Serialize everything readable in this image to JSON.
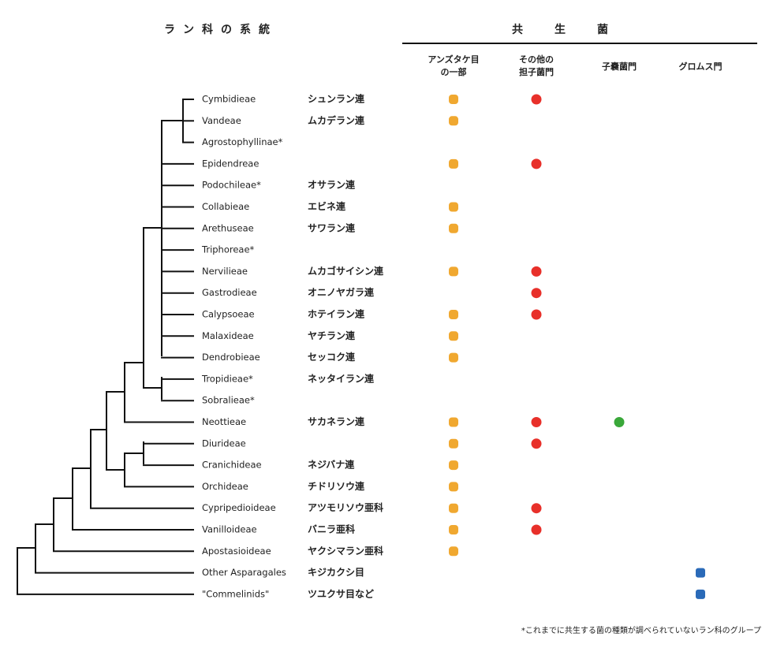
{
  "title": "ラン科の系統",
  "fungi_header": "共生菌",
  "columns": [
    {
      "lines": [
        "アンズタケ目",
        "の一部"
      ],
      "color": "#f0a830"
    },
    {
      "lines": [
        "その他の",
        "担子菌門"
      ],
      "color": "#e8302a"
    },
    {
      "lines": [
        "子嚢菌門"
      ],
      "color": "#3aa83a"
    },
    {
      "lines": [
        "グロムス門"
      ],
      "color": "#2a6ab8"
    }
  ],
  "rows": [
    {
      "name": "Cymbidieae",
      "ja": "シュンラン連",
      "fungi": [
        true,
        true,
        false,
        false
      ]
    },
    {
      "name": "Vandeae",
      "ja": "ムカデラン連",
      "fungi": [
        true,
        false,
        false,
        false
      ]
    },
    {
      "name": "Agrostophyllinae*",
      "fungi": [
        false,
        false,
        false,
        false
      ]
    },
    {
      "name": "Epidendreae",
      "fungi": [
        true,
        true,
        false,
        false
      ]
    },
    {
      "name": "Podochileae*",
      "ja": "オサラン連",
      "fungi": [
        false,
        false,
        false,
        false
      ]
    },
    {
      "name": "Collabieae",
      "ja": "エビネ連",
      "fungi": [
        true,
        false,
        false,
        false
      ]
    },
    {
      "name": "Arethuseae",
      "ja": "サワラン連",
      "fungi": [
        true,
        false,
        false,
        false
      ]
    },
    {
      "name": "Triphoreae*",
      "fungi": [
        false,
        false,
        false,
        false
      ]
    },
    {
      "name": "Nervilieae",
      "ja": "ムカゴサイシン連",
      "fungi": [
        true,
        true,
        false,
        false
      ]
    },
    {
      "name": "Gastrodieae",
      "ja": "オニノヤガラ連",
      "fungi": [
        false,
        true,
        false,
        false
      ]
    },
    {
      "name": "Calypsoeae",
      "ja": "ホテイラン連",
      "fungi": [
        true,
        true,
        false,
        false
      ]
    },
    {
      "name": "Malaxideae",
      "ja": "ヤチラン連",
      "fungi": [
        true,
        false,
        false,
        false
      ]
    },
    {
      "name": "Dendrobieae",
      "ja": "セッコク連",
      "fungi": [
        true,
        false,
        false,
        false
      ]
    },
    {
      "name": "Tropidieae*",
      "ja": "ネッタイラン連",
      "fungi": [
        false,
        false,
        false,
        false
      ]
    },
    {
      "name": "Sobralieae*",
      "fungi": [
        false,
        false,
        false,
        false
      ]
    },
    {
      "name": "Neottieae",
      "ja": "サカネラン連",
      "fungi": [
        true,
        true,
        true,
        false
      ]
    },
    {
      "name": "Diurideae",
      "fungi": [
        true,
        true,
        false,
        false
      ]
    },
    {
      "name": "Cranichideae",
      "ja": "ネジバナ連",
      "fungi": [
        true,
        false,
        false,
        false
      ]
    },
    {
      "name": "Orchideae",
      "ja": "チドリソウ連",
      "fungi": [
        true,
        false,
        false,
        false
      ]
    },
    {
      "name": "Cypripedioideae",
      "ja": "アツモリソウ亜科",
      "fungi": [
        true,
        true,
        false,
        false
      ]
    },
    {
      "name": "Vanilloideae",
      "ja": "バニラ亜科",
      "fungi": [
        true,
        true,
        false,
        false
      ]
    },
    {
      "name": "Apostasioideae",
      "ja": "ヤクシマラン亜科",
      "fungi": [
        true,
        false,
        false,
        false
      ]
    },
    {
      "name": "Other Asparagales",
      "ja": "キジカクシ目",
      "fungi": [
        false,
        false,
        false,
        true
      ]
    },
    {
      "name": "\"Commelinids\"",
      "ja": "ツユクサ目など",
      "fungi": [
        false,
        false,
        false,
        true
      ]
    }
  ],
  "footnote": "*これまでに共生する菌の種類が調べられていないラン科のグループ"
}
